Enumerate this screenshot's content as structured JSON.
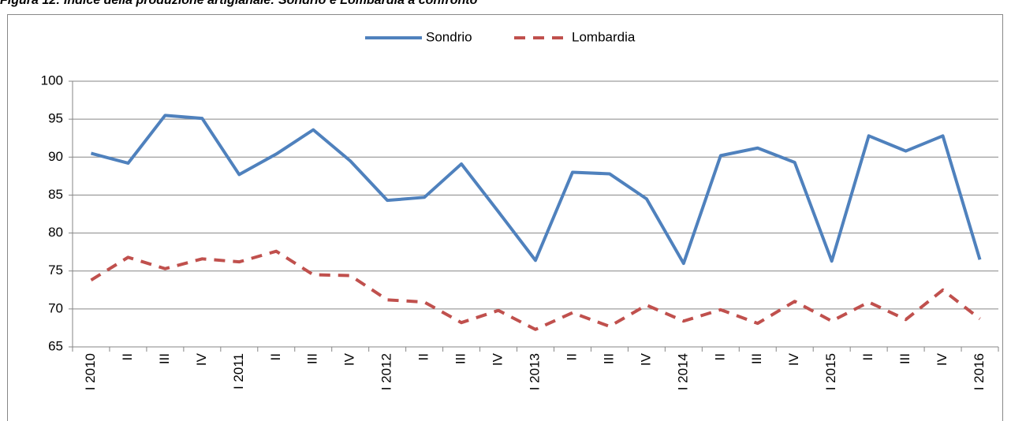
{
  "chart_data": {
    "type": "line",
    "title": "Figura 12: Indice della produzione artigianale: Sondrio e Lombardia a confronto",
    "categories": [
      "I 2010",
      "II",
      "III",
      "IV",
      "I 2011",
      "II",
      "III",
      "IV",
      "I 2012",
      "II",
      "III",
      "IV",
      "I 2013",
      "II",
      "III",
      "IV",
      "I 2014",
      "II",
      "III",
      "IV",
      "I 2015",
      "II",
      "III",
      "IV",
      "I 2016"
    ],
    "series": [
      {
        "name": "Sondrio",
        "color": "#4f81bd",
        "dash": false,
        "values": [
          90.5,
          89.2,
          95.5,
          95.1,
          87.7,
          90.4,
          93.6,
          89.5,
          84.3,
          84.7,
          89.1,
          82.8,
          76.4,
          88.0,
          87.8,
          84.5,
          76.0,
          90.2,
          91.2,
          89.3,
          76.3,
          92.8,
          90.8,
          92.8,
          76.5
        ]
      },
      {
        "name": "Lombardia",
        "color": "#c0504d",
        "dash": true,
        "values": [
          73.8,
          76.8,
          75.3,
          76.6,
          76.2,
          77.6,
          74.5,
          74.4,
          71.2,
          70.9,
          68.2,
          69.8,
          67.3,
          69.5,
          67.7,
          70.5,
          68.4,
          69.9,
          68.1,
          71.0,
          68.4,
          70.9,
          68.6,
          72.5,
          68.7
        ]
      }
    ],
    "ylim": [
      65,
      100
    ],
    "yticks": [
      65,
      70,
      75,
      80,
      85,
      90,
      95,
      100
    ],
    "grid": true,
    "legend": "top"
  }
}
